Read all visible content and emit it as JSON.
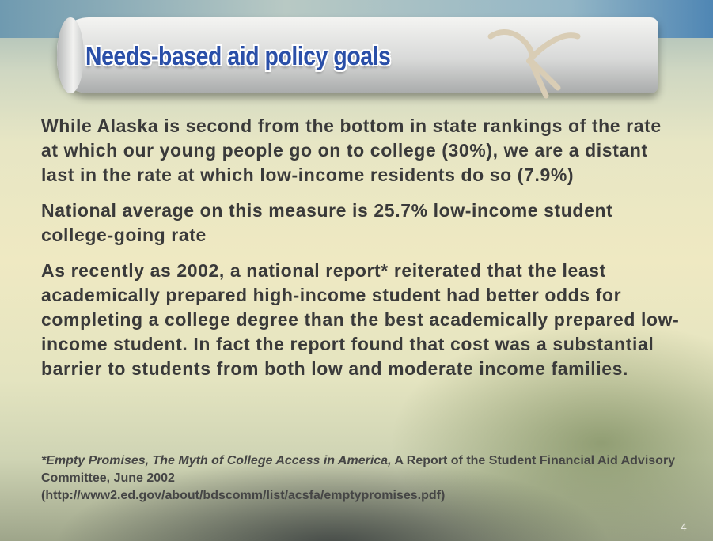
{
  "header": {
    "title": "Needs-based aid policy goals"
  },
  "paragraphs": [
    "While Alaska is second from the bottom in state rankings of the rate at which our young people go on to college (30%), we are a distant last in the rate at which low-income residents do so (7.9%)",
    "National average on this measure is 25.7% low-income student college-going rate",
    "As recently as 2002, a national report* reiterated that the least academically prepared high-income student had better odds for completing a college degree than the best academically prepared low-income student.  In fact the report found that cost was a substantial barrier to students from both low and moderate income families."
  ],
  "footnote": {
    "citation": "*Empty Promises, The Myth of College Access in America,",
    "source": "A Report of the Student Financial Aid Advisory Committee, June 2002",
    "url": "(http://www2.ed.gov/about/bdscomm/list/acsfa/emptypromises.pdf)"
  },
  "page_number": "4"
}
